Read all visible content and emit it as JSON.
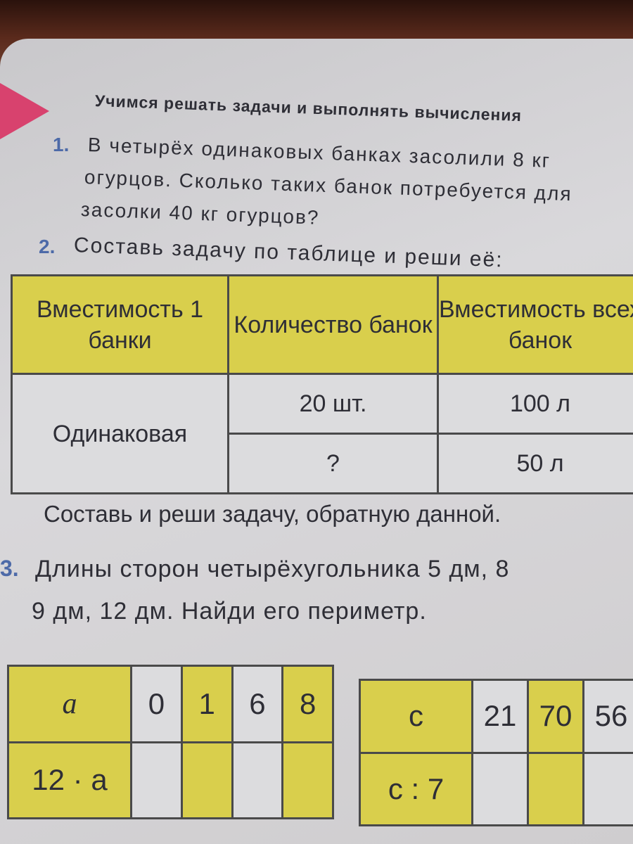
{
  "header": {
    "title": "Учимся решать задачи и выполнять вычисления"
  },
  "problems": [
    {
      "number": "1.",
      "lines": [
        "В четырёх одинаковых банках засолили 8 кг",
        "огурцов. Сколько таких банок потребуется для",
        "засолки 40 кг огурцов?"
      ]
    },
    {
      "number": "2.",
      "lines": [
        "Составь задачу по таблице и реши её:"
      ]
    },
    {
      "number": "3.",
      "lines": [
        "Длины сторон четырёхугольника 5 дм, 8",
        "9 дм, 12 дм. Найди его периметр."
      ]
    }
  ],
  "table1": {
    "headers": [
      "Вместимость 1 банки",
      "Количество банок",
      "Вместимость всех банок"
    ],
    "capacity": "Одинаковая",
    "rows": [
      [
        "20 шт.",
        "100 л"
      ],
      [
        "?",
        "50 л"
      ]
    ]
  },
  "note": "Составь и реши задачу, обратную данной.",
  "table2": {
    "label_top": "a",
    "label_bottom": "12 · a",
    "values": [
      "0",
      "1",
      "6",
      "8"
    ]
  },
  "table3": {
    "label_top": "c",
    "label_bottom": "c : 7",
    "values": [
      "21",
      "70",
      "56"
    ]
  }
}
